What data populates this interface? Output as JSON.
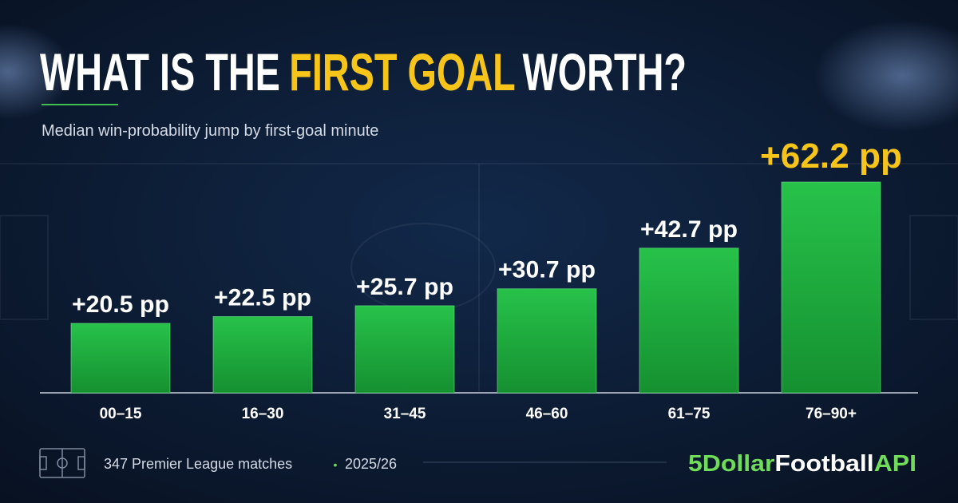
{
  "chart_data": {
    "type": "bar",
    "title": [
      "WHAT IS THE",
      "FIRST GOAL",
      "WORTH?"
    ],
    "title_highlight_color": "#f7c41a",
    "subtitle": "Median win-probability jump by first-goal minute",
    "categories": [
      "00–15",
      "16–30",
      "31–45",
      "46–60",
      "61–75",
      "76–90+"
    ],
    "values": [
      20.5,
      22.5,
      25.7,
      30.7,
      42.7,
      62.2
    ],
    "value_labels": [
      "+20.5 pp",
      "+22.5 pp",
      "+25.7 pp",
      "+30.7 pp",
      "+42.7 pp",
      "+62.2 pp"
    ],
    "value_label_colors": [
      "#ffffff",
      "#ffffff",
      "#ffffff",
      "#ffffff",
      "#ffffff",
      "#f7c41a"
    ],
    "color": "#1faa3c"
  },
  "footer": {
    "note": "347 Premier League matches",
    "separator": "•",
    "season": "2025/26",
    "brand": [
      "5Dollar",
      "Football",
      "API"
    ],
    "brand_color": "#6fdc5a"
  }
}
